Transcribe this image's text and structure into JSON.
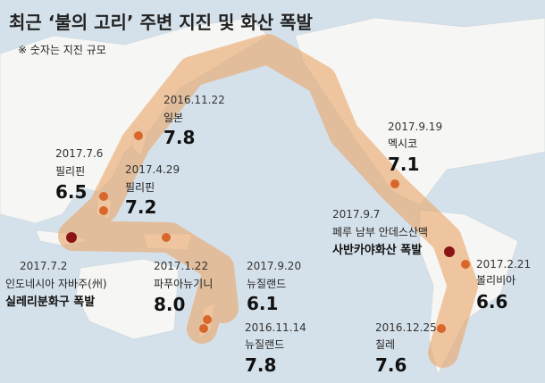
{
  "title": "최근 ‘불의 고리’ 주변 지진 및 화산 폭발",
  "note": "※ 숫자는 지진 규모",
  "events": [
    {
      "date": "2016.11.22",
      "place": "일본",
      "magnitude": "7.8"
    },
    {
      "date": "2017.7.6",
      "place": "필리핀",
      "magnitude": "6.5"
    },
    {
      "date": "2017.4.29",
      "place": "필리핀",
      "magnitude": "7.2"
    },
    {
      "date": "2017.7.2",
      "place": "인도네시아 자바주(州)",
      "event": "실레리분화구 폭발"
    },
    {
      "date": "2017.1.22",
      "place": "파푸아뉴기니",
      "magnitude": "8.0"
    },
    {
      "date": "2017.9.20",
      "place": "뉴질랜드",
      "magnitude": "6.1"
    },
    {
      "date": "2016.11.14",
      "place": "뉴질랜드",
      "magnitude": "7.8"
    },
    {
      "date": "2017.9.19",
      "place": "멕시코",
      "magnitude": "7.1"
    },
    {
      "date": "2017.9.7",
      "place": "페루 남부 안데스산맥",
      "event": "사반카야화산 폭발"
    },
    {
      "date": "2017.2.21",
      "place": "볼리비아",
      "magnitude": "6.6"
    },
    {
      "date": "2016.12.25",
      "place": "칠레",
      "magnitude": "7.6"
    }
  ]
}
